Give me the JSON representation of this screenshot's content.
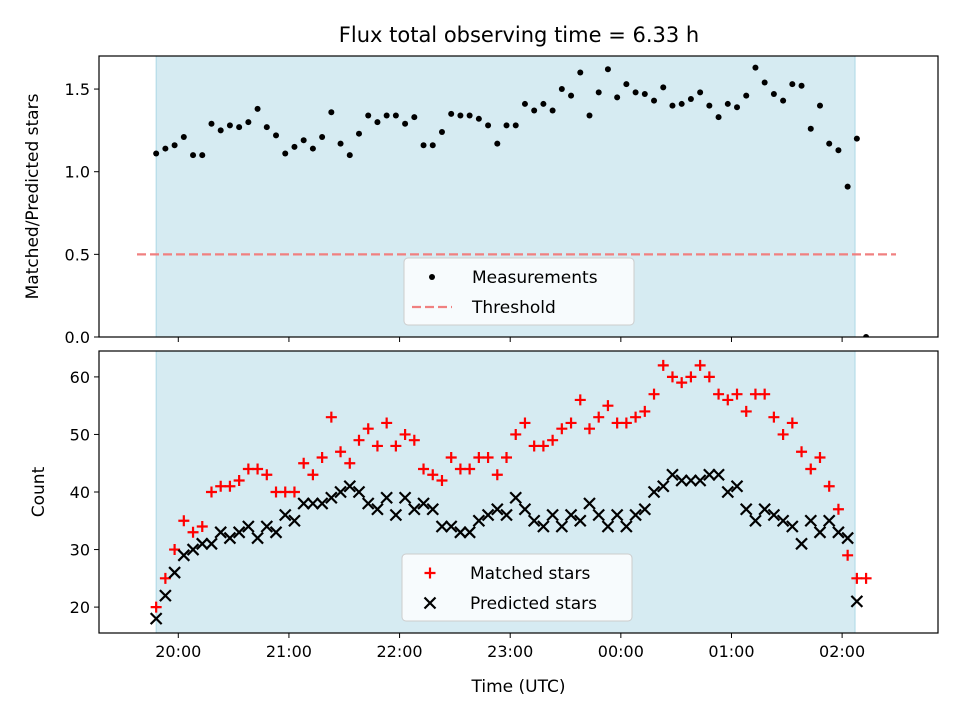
{
  "figure_title": "Flux total observing time = 6.33 h",
  "colors": {
    "band": "#add8e6",
    "measurement": "#000000",
    "threshold": "#f08080",
    "matched": "#ff0000",
    "predicted": "#000000"
  },
  "chart_data": [
    {
      "type": "scatter",
      "title": "Flux total observing time = 6.33 h",
      "xlabel": "",
      "ylabel": "Matched/Predicted stars",
      "xlim": [
        "19:17",
        "02:52"
      ],
      "ylim": [
        0,
        1.7
      ],
      "yticks": [
        0.0,
        0.5,
        1.0,
        1.5
      ],
      "ytick_labels": [
        "0.0",
        "0.5",
        "1.0",
        "1.5"
      ],
      "xtick_labels": [],
      "shaded_span": [
        "19:48",
        "02:07"
      ],
      "legend": {
        "location": "lower center",
        "entries": [
          "Measurements",
          "Threshold"
        ]
      },
      "threshold": 0.5,
      "series": [
        {
          "name": "Measurements",
          "marker": "dot",
          "x": [
            "19:48",
            "19:53",
            "19:58",
            "20:03",
            "20:08",
            "20:13",
            "20:18",
            "20:23",
            "20:28",
            "20:33",
            "20:38",
            "20:43",
            "20:48",
            "20:53",
            "20:58",
            "21:03",
            "21:08",
            "21:13",
            "21:18",
            "21:23",
            "21:28",
            "21:33",
            "21:38",
            "21:43",
            "21:48",
            "21:53",
            "21:58",
            "22:03",
            "22:08",
            "22:13",
            "22:18",
            "22:23",
            "22:28",
            "22:33",
            "22:38",
            "22:43",
            "22:48",
            "22:53",
            "22:58",
            "23:03",
            "23:08",
            "23:13",
            "23:18",
            "23:23",
            "23:28",
            "23:33",
            "23:38",
            "23:43",
            "23:48",
            "23:53",
            "23:58",
            "00:03",
            "00:08",
            "00:13",
            "00:18",
            "00:23",
            "00:28",
            "00:33",
            "00:38",
            "00:43",
            "00:48",
            "00:53",
            "00:58",
            "01:03",
            "01:08",
            "01:13",
            "01:18",
            "01:23",
            "01:28",
            "01:33",
            "01:38",
            "01:43",
            "01:48",
            "01:53",
            "01:58",
            "02:03",
            "02:08",
            "02:13"
          ],
          "y": [
            1.11,
            1.14,
            1.16,
            1.21,
            1.1,
            1.1,
            1.29,
            1.25,
            1.28,
            1.27,
            1.3,
            1.38,
            1.27,
            1.22,
            1.11,
            1.15,
            1.19,
            1.14,
            1.21,
            1.36,
            1.17,
            1.1,
            1.23,
            1.34,
            1.3,
            1.34,
            1.34,
            1.29,
            1.33,
            1.16,
            1.16,
            1.24,
            1.35,
            1.34,
            1.34,
            1.32,
            1.28,
            1.17,
            1.28,
            1.28,
            1.41,
            1.37,
            1.41,
            1.37,
            1.5,
            1.46,
            1.6,
            1.34,
            1.48,
            1.62,
            1.45,
            1.53,
            1.48,
            1.47,
            1.43,
            1.51,
            1.4,
            1.41,
            1.44,
            1.48,
            1.4,
            1.33,
            1.41,
            1.39,
            1.46,
            1.63,
            1.54,
            1.47,
            1.43,
            1.53,
            1.52,
            1.26,
            1.4,
            1.17,
            1.13,
            0.91,
            1.2,
            0.0
          ]
        }
      ]
    },
    {
      "type": "scatter",
      "title": "",
      "xlabel": "Time (UTC)",
      "ylabel": "Count",
      "xlim": [
        "19:17",
        "02:52"
      ],
      "ylim": [
        15.5,
        64.5
      ],
      "yticks": [
        20,
        30,
        40,
        50,
        60
      ],
      "ytick_labels": [
        "20",
        "30",
        "40",
        "50",
        "60"
      ],
      "xtick_labels": [
        "20:00",
        "21:00",
        "22:00",
        "23:00",
        "00:00",
        "01:00",
        "02:00"
      ],
      "shaded_span": [
        "19:48",
        "02:07"
      ],
      "legend": {
        "location": "lower center",
        "entries": [
          "Matched stars",
          "Predicted stars"
        ]
      },
      "series": [
        {
          "name": "Matched stars",
          "marker": "plus",
          "x": [
            "19:48",
            "19:53",
            "19:58",
            "20:03",
            "20:08",
            "20:13",
            "20:18",
            "20:23",
            "20:28",
            "20:33",
            "20:38",
            "20:43",
            "20:48",
            "20:53",
            "20:58",
            "21:03",
            "21:08",
            "21:13",
            "21:18",
            "21:23",
            "21:28",
            "21:33",
            "21:38",
            "21:43",
            "21:48",
            "21:53",
            "21:58",
            "22:03",
            "22:08",
            "22:13",
            "22:18",
            "22:23",
            "22:28",
            "22:33",
            "22:38",
            "22:43",
            "22:48",
            "22:53",
            "22:58",
            "23:03",
            "23:08",
            "23:13",
            "23:18",
            "23:23",
            "23:28",
            "23:33",
            "23:38",
            "23:43",
            "23:48",
            "23:53",
            "23:58",
            "00:03",
            "00:08",
            "00:13",
            "00:18",
            "00:23",
            "00:28",
            "00:33",
            "00:38",
            "00:43",
            "00:48",
            "00:53",
            "00:58",
            "01:03",
            "01:08",
            "01:13",
            "01:18",
            "01:23",
            "01:28",
            "01:33",
            "01:38",
            "01:43",
            "01:48",
            "01:53",
            "01:58",
            "02:03",
            "02:08",
            "02:13"
          ],
          "y": [
            20,
            25,
            30,
            35,
            33,
            34,
            40,
            41,
            41,
            42,
            44,
            44,
            43,
            40,
            40,
            40,
            45,
            43,
            46,
            53,
            47,
            45,
            49,
            51,
            48,
            52,
            48,
            50,
            49,
            44,
            43,
            42,
            46,
            44,
            44,
            46,
            46,
            43,
            46,
            50,
            52,
            48,
            48,
            49,
            51,
            52,
            56,
            51,
            53,
            55,
            52,
            52,
            53,
            54,
            57,
            62,
            60,
            59,
            60,
            62,
            60,
            57,
            56,
            57,
            54,
            57,
            57,
            53,
            50,
            52,
            47,
            44,
            46,
            41,
            37,
            29,
            25,
            25
          ]
        },
        {
          "name": "Predicted stars",
          "marker": "x",
          "x": [
            "19:48",
            "19:53",
            "19:58",
            "20:03",
            "20:08",
            "20:13",
            "20:18",
            "20:23",
            "20:28",
            "20:33",
            "20:38",
            "20:43",
            "20:48",
            "20:53",
            "20:58",
            "21:03",
            "21:08",
            "21:13",
            "21:18",
            "21:23",
            "21:28",
            "21:33",
            "21:38",
            "21:43",
            "21:48",
            "21:53",
            "21:58",
            "22:03",
            "22:08",
            "22:13",
            "22:18",
            "22:23",
            "22:28",
            "22:33",
            "22:38",
            "22:43",
            "22:48",
            "22:53",
            "22:58",
            "23:03",
            "23:08",
            "23:13",
            "23:18",
            "23:23",
            "23:28",
            "23:33",
            "23:38",
            "23:43",
            "23:48",
            "23:53",
            "23:58",
            "00:03",
            "00:08",
            "00:13",
            "00:18",
            "00:23",
            "00:28",
            "00:33",
            "00:38",
            "00:43",
            "00:48",
            "00:53",
            "00:58",
            "01:03",
            "01:08",
            "01:13",
            "01:18",
            "01:23",
            "01:28",
            "01:33",
            "01:38",
            "01:43",
            "01:48",
            "01:53",
            "01:58",
            "02:03",
            "02:08"
          ],
          "y": [
            18,
            22,
            26,
            29,
            30,
            31,
            31,
            33,
            32,
            33,
            34,
            32,
            34,
            33,
            36,
            35,
            38,
            38,
            38,
            39,
            40,
            41,
            40,
            38,
            37,
            39,
            36,
            39,
            37,
            38,
            37,
            34,
            34,
            33,
            33,
            35,
            36,
            37,
            36,
            39,
            37,
            35,
            34,
            36,
            34,
            36,
            35,
            38,
            36,
            34,
            36,
            34,
            36,
            37,
            40,
            41,
            43,
            42,
            42,
            42,
            43,
            43,
            40,
            41,
            37,
            35,
            37,
            36,
            35,
            34,
            31,
            35,
            33,
            35,
            33,
            32,
            21
          ]
        }
      ]
    }
  ]
}
